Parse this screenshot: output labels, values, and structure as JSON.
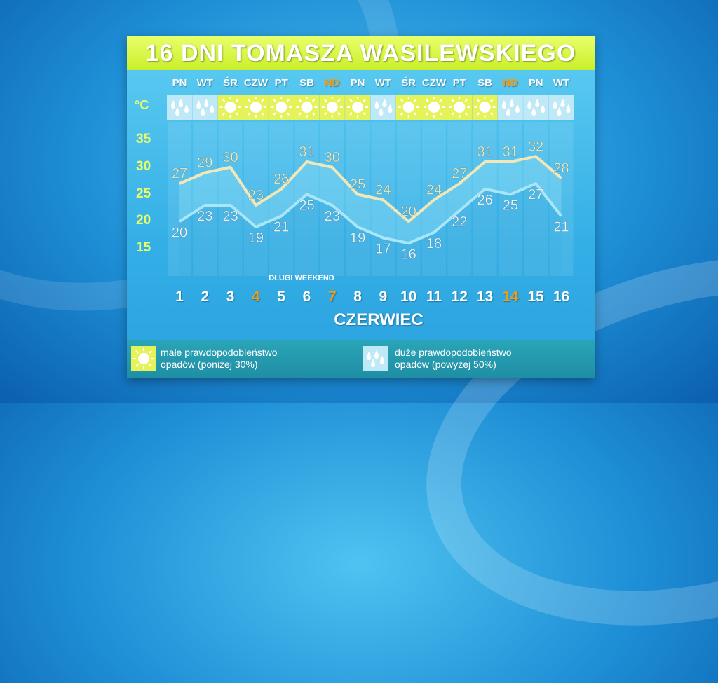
{
  "title": "16 DNI TOMASZA WASILEWSKIEGO",
  "unit": "°C",
  "month": "CZERWIEC",
  "annotation": "DŁUGI WEEKEND",
  "colors": {
    "title_bg": "#d6f53a",
    "weekend": "#f29a14",
    "sunny_bg": "#e6f25a",
    "rain_bg": "#bfe9f7",
    "max_line": "#f3e7b8",
    "min_line": "#a9e6f7"
  },
  "chart_data": {
    "type": "line",
    "title": "16 DNI TOMASZA WASILEWSKIEGO",
    "xlabel": "CZERWIEC",
    "ylabel": "°C",
    "ylim": [
      15,
      35
    ],
    "yticks": [
      35,
      30,
      25,
      20,
      15
    ],
    "x": [
      1,
      2,
      3,
      4,
      5,
      6,
      7,
      8,
      9,
      10,
      11,
      12,
      13,
      14,
      15,
      16
    ],
    "x_labels": [
      "1",
      "2",
      "3",
      "4",
      "5",
      "6",
      "7",
      "8",
      "9",
      "10",
      "11",
      "12",
      "13",
      "14",
      "15",
      "16"
    ],
    "day_names": [
      "PN",
      "WT",
      "ŚR",
      "CZW",
      "PT",
      "SB",
      "ND",
      "PN",
      "WT",
      "ŚR",
      "CZW",
      "PT",
      "SB",
      "ND",
      "PN",
      "WT"
    ],
    "weekend_days": [
      4,
      7,
      14
    ],
    "weather_icons": [
      "rain-icon",
      "rain-icon",
      "sun-icon",
      "sun-icon",
      "sun-icon",
      "sun-icon",
      "sun-icon",
      "sun-icon",
      "rain-icon",
      "sun-icon",
      "sun-icon",
      "sun-icon",
      "sun-icon",
      "rain-icon",
      "rain-icon",
      "rain-icon"
    ],
    "series": [
      {
        "name": "max",
        "values": [
          27,
          29,
          30,
          23,
          26,
          31,
          30,
          25,
          24,
          20,
          24,
          27,
          31,
          31,
          32,
          28
        ]
      },
      {
        "name": "min",
        "values": [
          20,
          23,
          23,
          19,
          21,
          25,
          23,
          19,
          17,
          16,
          18,
          22,
          26,
          25,
          27,
          21
        ]
      }
    ],
    "annotations": [
      {
        "text": "DŁUGI WEEKEND",
        "x_range": [
          4,
          7
        ]
      }
    ]
  },
  "legend": [
    {
      "icon": "sun-icon",
      "line1": "małe prawdopodobieństwo",
      "line2": "opadów (poniżej 30%)"
    },
    {
      "icon": "rain-icon",
      "line1": "duże prawdopodobieństwo",
      "line2": "opadów (powyżej 50%)"
    }
  ]
}
